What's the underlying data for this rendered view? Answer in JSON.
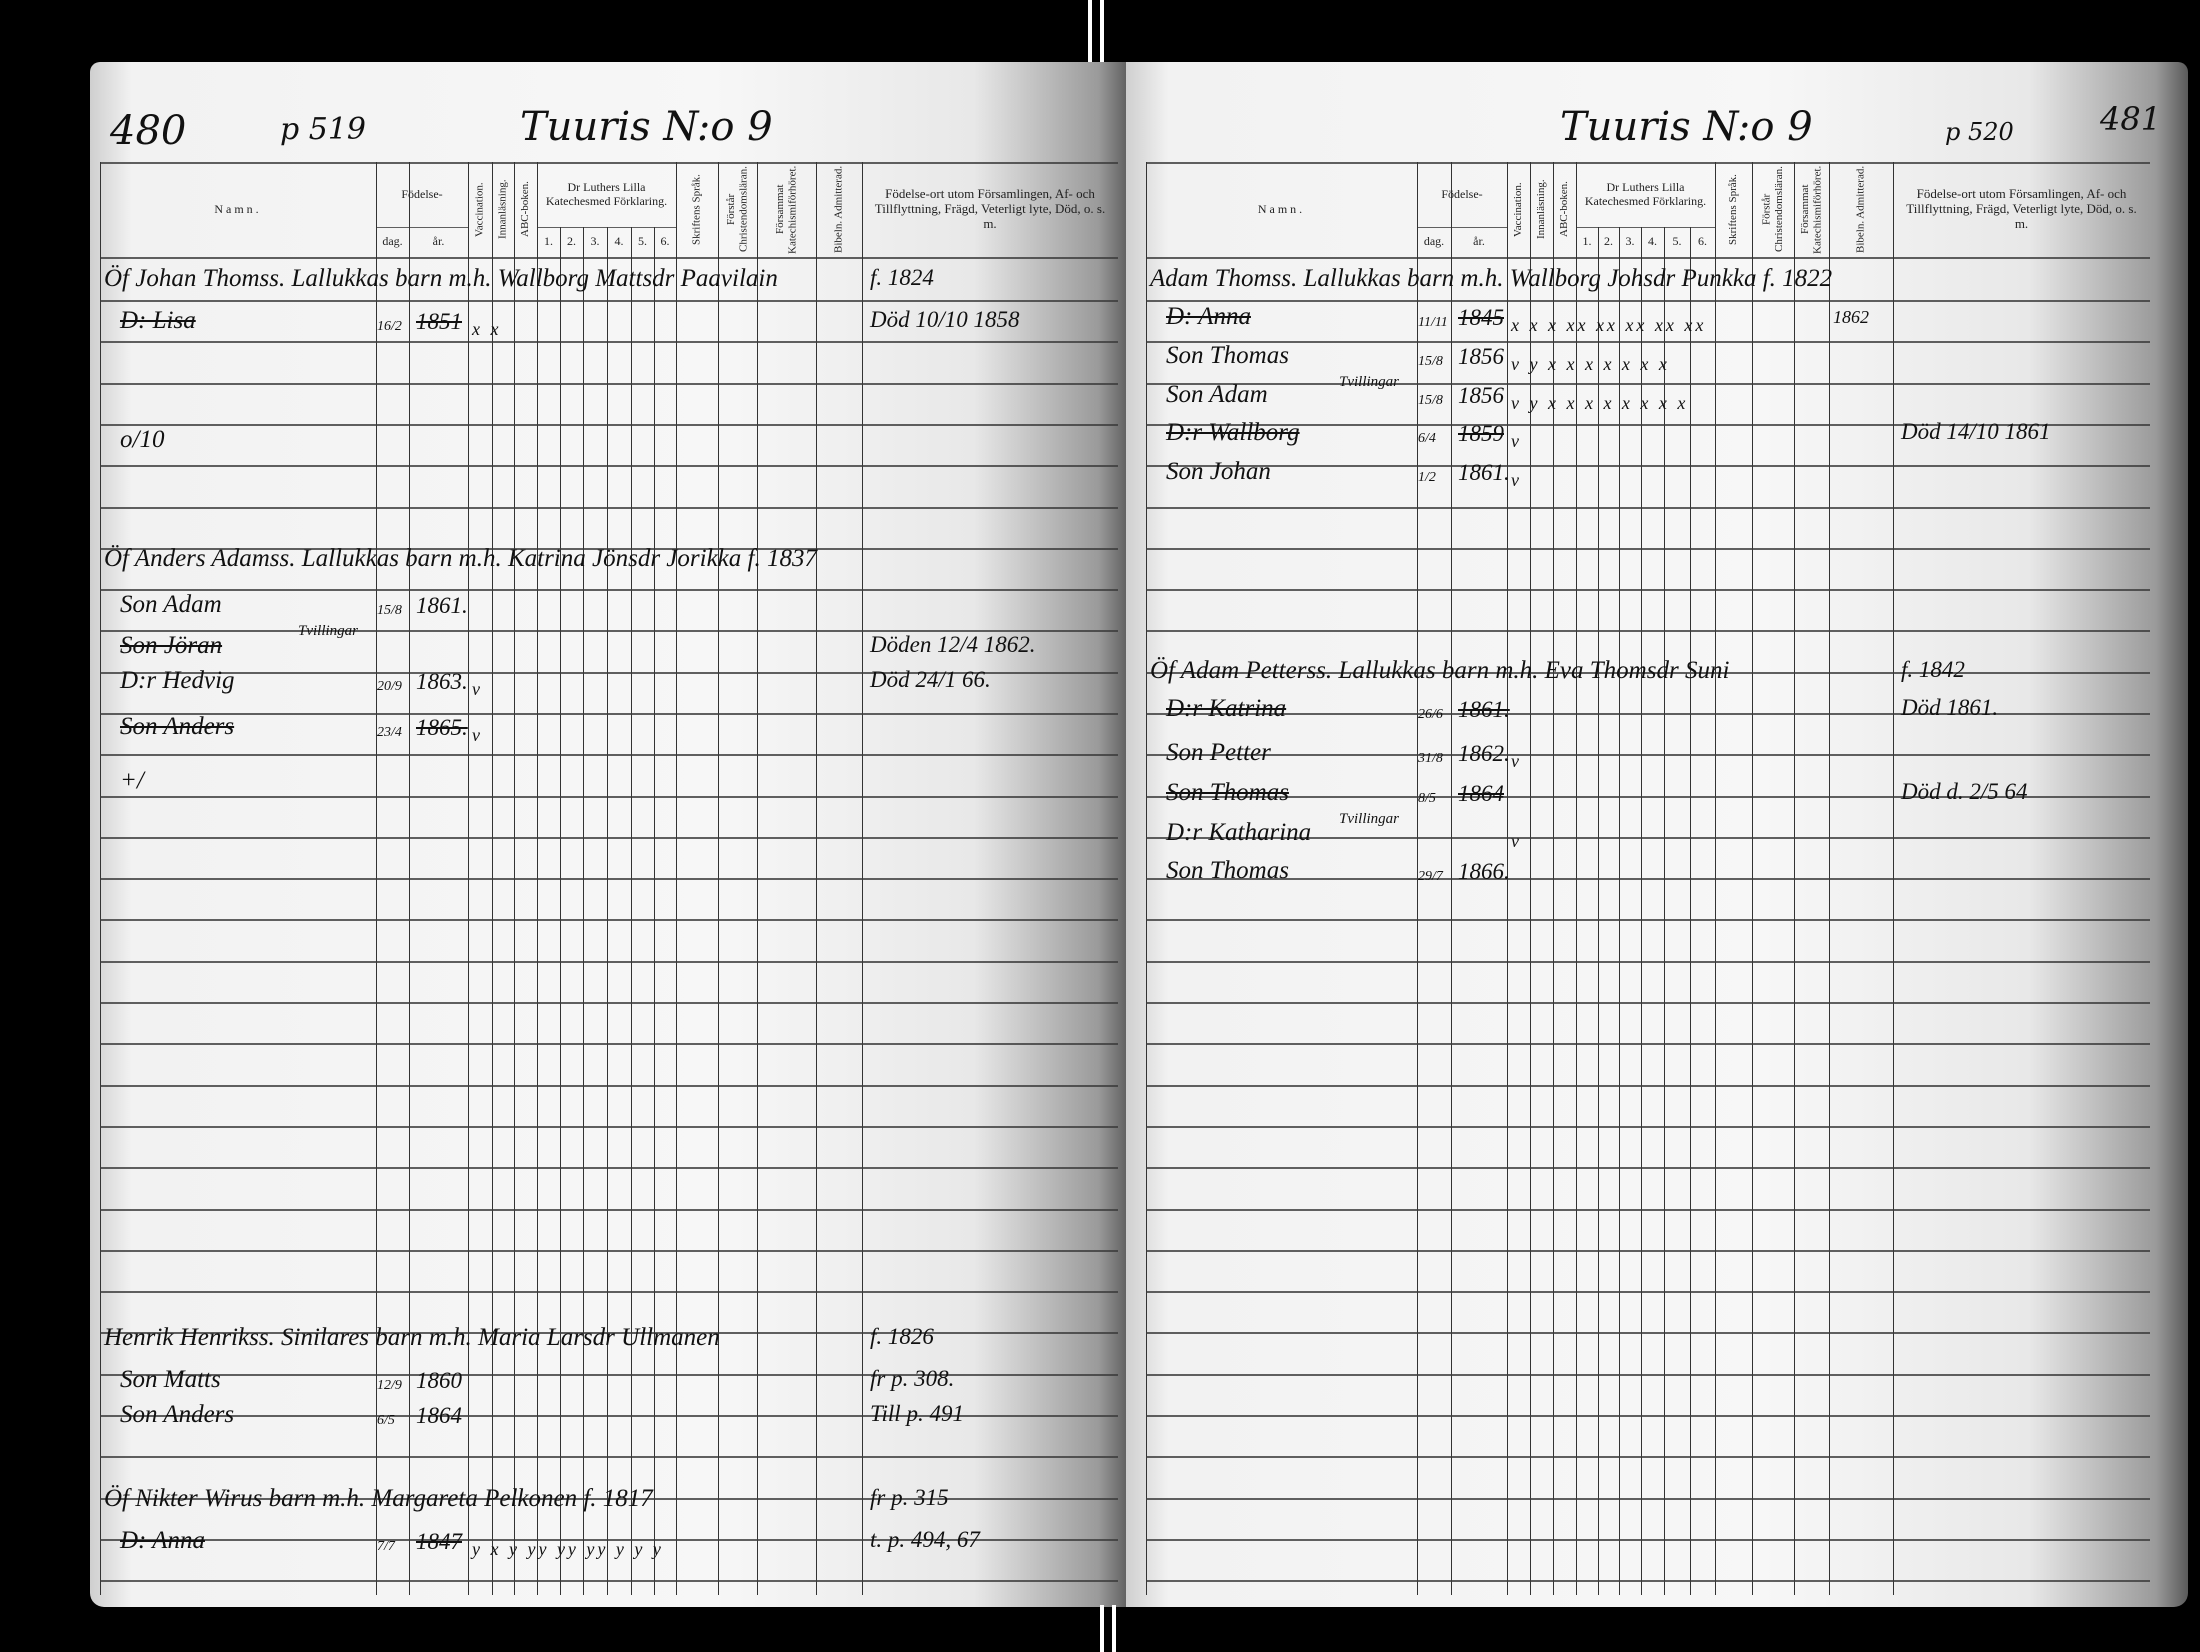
{
  "left_page": {
    "page_number": "480",
    "ref": "p 519",
    "title": "Tuuris N:o 9",
    "entries": [
      {
        "head": "Öf Johan Thomss. Lallukkas barn m.h. Wallborg Mattsdr Paavilain",
        "remark": "f. 1824"
      },
      {
        "name": "D: Lisa",
        "dag": "16/2",
        "ar": "1851",
        "marks": "x  x",
        "remark": "Död 10/10 1858",
        "struck": true
      },
      {
        "name": "o/10"
      },
      {
        "head": "Öf Anders Adamss. Lallukkas barn m.h. Katrina Jönsdr Jorikka f. 1837"
      },
      {
        "name": "Son Adam",
        "note": "Tvillingar",
        "dag": "15/8",
        "ar": "1861."
      },
      {
        "name": "Son Jöran",
        "remark": "Döden 12/4 1862.",
        "struck": true
      },
      {
        "name": "D:r Hedvig",
        "dag": "20/9",
        "ar": "1863.",
        "marks": "v",
        "remark": "Död 24/1 66."
      },
      {
        "name": "Son Anders",
        "dag": "23/4",
        "ar": "1865.",
        "marks": "v",
        "struck": true
      },
      {
        "name": "+/"
      },
      {
        "head": "Henrik Henrikss. Sinilares barn m.h. Maria Larsdr Ullmanen",
        "remark": "f. 1826"
      },
      {
        "name": "Son Matts",
        "dag": "12/9",
        "ar": "1860",
        "remark": "fr p. 308."
      },
      {
        "name": "Son Anders",
        "dag": "6/5",
        "ar": "1864",
        "remark": "Till p. 491"
      },
      {
        "head": "Öf Nikter Wirus barn m.h. Margareta Pelkonen f. 1817",
        "remark": "fr p. 315"
      },
      {
        "name": "D: Anna",
        "dag": "7/7",
        "ar": "1847",
        "marks": "y x y yy yy yy y y y",
        "remark": "t. p. 494, 67",
        "struck": true
      }
    ]
  },
  "right_page": {
    "page_number": "481",
    "ref": "p 520",
    "title": "Tuuris N:o 9",
    "entries": [
      {
        "head": "Adam Thomss. Lallukkas barn m.h. Wallborg Johsdr Punkka f. 1822"
      },
      {
        "name": "D: Anna",
        "dag": "11/11",
        "ar": "1845",
        "marks": "x x x xx xx xx xx xx",
        "admit": "1862",
        "struck": true
      },
      {
        "name": "Son Thomas",
        "note": "Tvillingar",
        "dag": "15/8",
        "ar": "1856",
        "marks": "v y x x x x x x x"
      },
      {
        "name": "Son Adam",
        "dag": "15/8",
        "ar": "1856",
        "marks": "v y x x x x x x x x"
      },
      {
        "name": "D:r Wallborg",
        "dag": "6/4",
        "ar": "1859",
        "marks": "v",
        "remark": "Död 14/10 1861",
        "struck": true
      },
      {
        "name": "Son Johan",
        "dag": "1/2",
        "ar": "1861.",
        "marks": "v"
      },
      {
        "head": "Öf Adam Petterss. Lallukkas barn m.h. Eva Thomsdr Suni",
        "remark": "f. 1842"
      },
      {
        "name": "D:r Katrina",
        "dag": "26/6",
        "ar": "1861.",
        "remark": "Död 1861.",
        "struck": true
      },
      {
        "name": "Son Petter",
        "dag": "31/8",
        "ar": "1862.",
        "marks": "v"
      },
      {
        "name": "Son Thomas",
        "note": "Tvillingar",
        "dag": "8/5",
        "ar": "1864",
        "remark": "Död d. 2/5 64",
        "struck": true
      },
      {
        "name": "D:r Katharina",
        "marks": "v"
      },
      {
        "name": "Son Thomas",
        "dag": "29/7",
        "ar": "1866."
      }
    ]
  },
  "headers": {
    "namn": "Namn.",
    "fodelse": "Födelse-",
    "dag": "dag.",
    "ar": "år.",
    "vaccination": "Vaccination.",
    "innanlasning": "Innanläsning.",
    "abc": "ABC-boken.",
    "luther": "Dr Luthers Lilla Katechesmed Förklaring.",
    "nums": [
      "1.",
      "2.",
      "3.",
      "4.",
      "5.",
      "6."
    ],
    "skriftens": "Skriftens Språk.",
    "forstar": "Förstår Christendomsläran.",
    "forsammat": "Försammat Katechismiförhöret.",
    "admitterad": "Bibeln. Admitterad.",
    "remarks": "Födelse-ort utom Församlingen, Af- och Tillflyttning, Frägd, Veterligt lyte, Död, o. s. m."
  }
}
